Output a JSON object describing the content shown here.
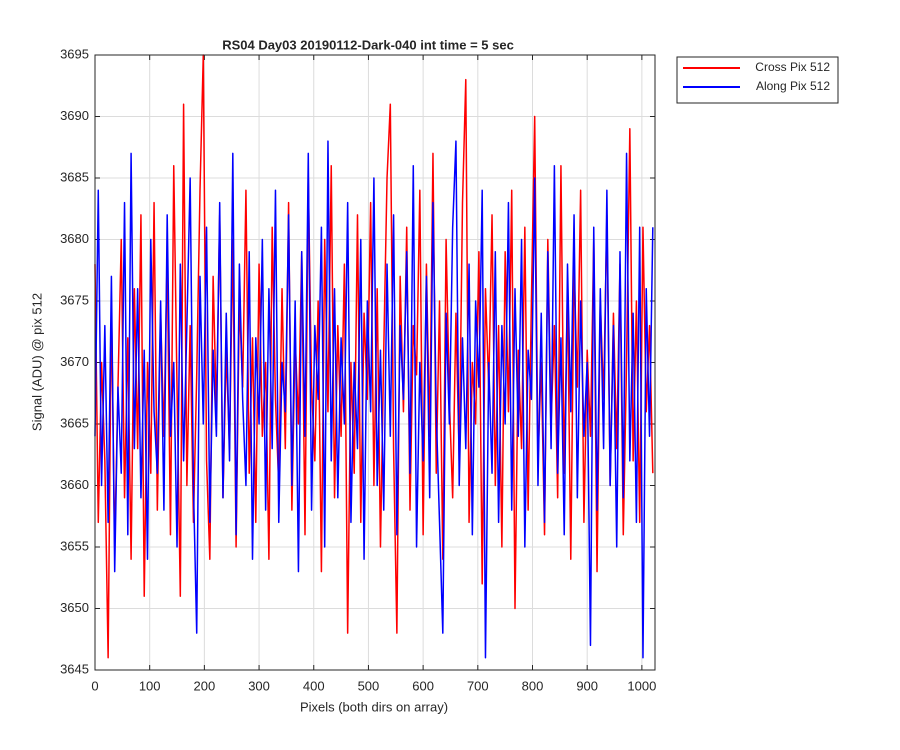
{
  "chart_data": {
    "type": "line",
    "title": "RS04 Day03 20190112-Dark-040 int time = 5 sec",
    "x_label": "Pixels (both dirs on array)",
    "y_label": "Signal (ADU) @ pix 512",
    "x": [
      0,
      6,
      12,
      18,
      24,
      30,
      36,
      42,
      48,
      54,
      60,
      66,
      72,
      78,
      84,
      90,
      96,
      102,
      108,
      114,
      120,
      126,
      132,
      138,
      144,
      150,
      156,
      162,
      168,
      174,
      180,
      186,
      192,
      198,
      204,
      210,
      216,
      222,
      228,
      234,
      240,
      246,
      252,
      258,
      264,
      270,
      276,
      282,
      288,
      294,
      300,
      306,
      312,
      318,
      324,
      330,
      336,
      342,
      348,
      354,
      360,
      366,
      372,
      378,
      384,
      390,
      396,
      402,
      408,
      414,
      420,
      426,
      432,
      438,
      444,
      450,
      456,
      462,
      468,
      474,
      480,
      486,
      492,
      498,
      504,
      510,
      516,
      522,
      528,
      534,
      540,
      546,
      552,
      558,
      564,
      570,
      576,
      582,
      588,
      594,
      600,
      606,
      612,
      618,
      624,
      630,
      636,
      642,
      648,
      654,
      660,
      666,
      672,
      678,
      684,
      690,
      696,
      702,
      708,
      714,
      720,
      726,
      732,
      738,
      744,
      750,
      756,
      762,
      768,
      774,
      780,
      786,
      792,
      798,
      804,
      810,
      816,
      822,
      828,
      834,
      840,
      846,
      852,
      858,
      864,
      870,
      876,
      882,
      888,
      894,
      900,
      906,
      912,
      918,
      924,
      930,
      936,
      942,
      948,
      954,
      960,
      966,
      972,
      978,
      984,
      990,
      996,
      1002,
      1008,
      1014,
      1020
    ],
    "series": [
      {
        "name": "Cross Pix 512",
        "color": "#ff0000",
        "values": [
          3678,
          3657,
          3670,
          3662,
          3646,
          3675,
          3655,
          3668,
          3680,
          3659,
          3672,
          3654,
          3676,
          3663,
          3682,
          3651,
          3670,
          3661,
          3683,
          3658,
          3674,
          3664,
          3679,
          3656,
          3686,
          3668,
          3651,
          3691,
          3660,
          3673,
          3657,
          3669,
          3684,
          3695,
          3662,
          3654,
          3677,
          3666,
          3682,
          3659,
          3671,
          3663,
          3680,
          3655,
          3675,
          3668,
          3684,
          3661,
          3672,
          3657,
          3678,
          3664,
          3670,
          3654,
          3681,
          3667,
          3660,
          3676,
          3663,
          3683,
          3658,
          3672,
          3665,
          3679,
          3656,
          3685,
          3668,
          3662,
          3675,
          3653,
          3680,
          3666,
          3686,
          3659,
          3673,
          3664,
          3678,
          3648,
          3670,
          3661,
          3682,
          3657,
          3674,
          3667,
          3683,
          3660,
          3676,
          3655,
          3671,
          3685,
          3691,
          3663,
          3648,
          3677,
          3666,
          3681,
          3658,
          3673,
          3669,
          3684,
          3656,
          3678,
          3664,
          3687,
          3661,
          3675,
          3654,
          3680,
          3667,
          3659,
          3674,
          3662,
          3683,
          3693,
          3657,
          3670,
          3665,
          3679,
          3652,
          3676,
          3668,
          3682,
          3660,
          3673,
          3655,
          3679,
          3666,
          3684,
          3650,
          3671,
          3663,
          3681,
          3658,
          3675,
          3690,
          3662,
          3670,
          3656,
          3680,
          3665,
          3673,
          3659,
          3686,
          3661,
          3676,
          3654,
          3678,
          3668,
          3684,
          3657,
          3671,
          3664,
          3680,
          3653,
          3675,
          3667,
          3682,
          3660,
          3674,
          3663,
          3678,
          3656,
          3670,
          3689,
          3662,
          3675,
          3657,
          3681,
          3666,
          3673,
          3661
        ]
      },
      {
        "name": "Along Pix 512",
        "color": "#0000ff",
        "values": [
          3664,
          3684,
          3660,
          3673,
          3657,
          3677,
          3653,
          3668,
          3661,
          3683,
          3656,
          3687,
          3663,
          3676,
          3659,
          3671,
          3654,
          3680,
          3666,
          3661,
          3675,
          3658,
          3682,
          3664,
          3670,
          3655,
          3678,
          3662,
          3673,
          3685,
          3660,
          3648,
          3677,
          3665,
          3681,
          3657,
          3671,
          3664,
          3683,
          3659,
          3674,
          3662,
          3687,
          3656,
          3678,
          3667,
          3660,
          3679,
          3654,
          3672,
          3665,
          3680,
          3658,
          3676,
          3663,
          3684,
          3657,
          3670,
          3666,
          3682,
          3660,
          3675,
          3653,
          3679,
          3664,
          3687,
          3658,
          3673,
          3667,
          3681,
          3655,
          3688,
          3662,
          3676,
          3659,
          3672,
          3665,
          3683,
          3657,
          3670,
          3663,
          3680,
          3654,
          3675,
          3666,
          3685,
          3660,
          3671,
          3658,
          3678,
          3664,
          3682,
          3656,
          3673,
          3667,
          3679,
          3661,
          3686,
          3655,
          3670,
          3662,
          3677,
          3659,
          3683,
          3666,
          3657,
          3648,
          3674,
          3665,
          3681,
          3688,
          3660,
          3672,
          3663,
          3678,
          3656,
          3675,
          3668,
          3684,
          3646,
          3670,
          3661,
          3679,
          3657,
          3673,
          3665,
          3683,
          3658,
          3676,
          3664,
          3680,
          3655,
          3671,
          3667,
          3685,
          3660,
          3674,
          3657,
          3679,
          3663,
          3686,
          3661,
          3672,
          3656,
          3678,
          3666,
          3682,
          3659,
          3675,
          3664,
          3670,
          3647,
          3681,
          3658,
          3676,
          3663,
          3684,
          3660,
          3673,
          3655,
          3679,
          3659,
          3687,
          3662,
          3674,
          3657,
          3681,
          3646,
          3676,
          3664,
          3681
        ]
      }
    ],
    "xlim": [
      0,
      1024
    ],
    "ylim": [
      3645,
      3695
    ],
    "xticks": [
      0,
      100,
      200,
      300,
      400,
      500,
      600,
      700,
      800,
      900,
      1000
    ],
    "yticks": [
      3645,
      3650,
      3655,
      3660,
      3665,
      3670,
      3675,
      3680,
      3685,
      3690,
      3695
    ],
    "grid": true,
    "legend": "northeastoutside"
  }
}
